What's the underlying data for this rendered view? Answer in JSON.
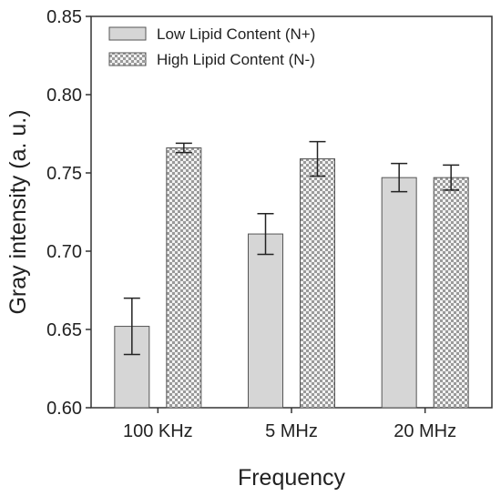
{
  "chart_data": {
    "type": "bar",
    "categories": [
      "100 KHz",
      "5 MHz",
      "20 MHz"
    ],
    "series": [
      {
        "name": "Low Lipid Content (N+)",
        "values": [
          0.652,
          0.711,
          0.747
        ],
        "errors": [
          0.018,
          0.013,
          0.009
        ],
        "fill": "#d6d6d6",
        "pattern": "solid"
      },
      {
        "name": "High Lipid Content (N-)",
        "values": [
          0.766,
          0.759,
          0.747
        ],
        "errors": [
          0.003,
          0.011,
          0.008
        ],
        "fill": "#bdbdbd",
        "pattern": "checker"
      }
    ],
    "title": "",
    "xlabel": "Frequency",
    "ylabel": "Gray intensity (a. u.)",
    "ylim": [
      0.6,
      0.85
    ],
    "yticks": [
      "0.60",
      "0.65",
      "0.70",
      "0.75",
      "0.80",
      "0.85"
    ],
    "grid": false,
    "legend_position": "top-left"
  }
}
